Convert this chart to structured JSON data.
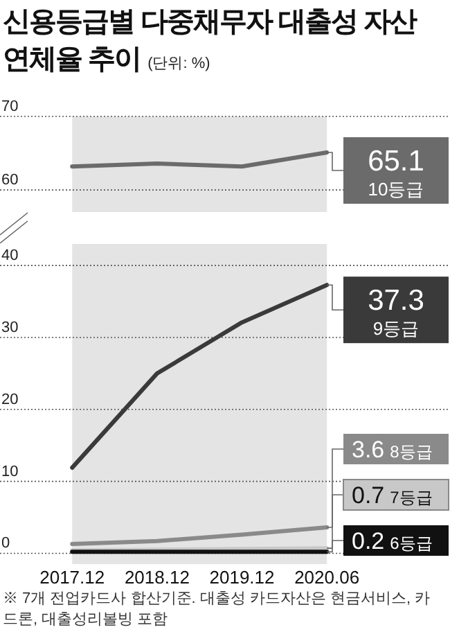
{
  "chart_data": [
    {
      "type": "line",
      "title": "신용등급별 다중채무자 대출성 자산 연체율 추이",
      "subtitle": "(단위: %)",
      "categories": [
        "2017.12",
        "2018.12",
        "2019.12",
        "2020.06"
      ],
      "series": [
        {
          "name": "10등급",
          "color": "#6b6b6b",
          "values": [
            63.2,
            63.6,
            63.2,
            65.1
          ],
          "value_labels": [
            null,
            null,
            null,
            "65.1"
          ]
        }
      ],
      "ylim": [
        57,
        70
      ],
      "yticks": [
        60,
        70
      ],
      "grid": "y",
      "tick_labels": "y",
      "bands": [
        {
          "axis": "x",
          "from": "2017.12",
          "to": "2020.06",
          "color": "#e4e4e4"
        }
      ]
    },
    {
      "type": "line",
      "categories": [
        "2017.12",
        "2018.12",
        "2019.12",
        "2020.06"
      ],
      "series": [
        {
          "name": "9등급",
          "color": "#3a3a3a",
          "values": [
            11.9,
            25.0,
            32.1,
            37.3
          ],
          "value_labels": [
            null,
            null,
            null,
            "37.3"
          ]
        },
        {
          "name": "8등급",
          "color": "#8a8a8a",
          "values": [
            1.3,
            1.7,
            2.6,
            3.6
          ],
          "value_labels": [
            null,
            null,
            null,
            "3.6"
          ]
        },
        {
          "name": "7등급",
          "color": "#c8c8c8",
          "values": [
            0.4,
            0.5,
            0.6,
            0.7
          ],
          "value_labels": [
            null,
            null,
            null,
            "0.7"
          ]
        },
        {
          "name": "6등급",
          "color": "#111111",
          "values": [
            0.2,
            0.2,
            0.2,
            0.2
          ],
          "value_labels": [
            null,
            null,
            null,
            "0.2"
          ]
        }
      ],
      "ylim": [
        -1.5,
        43
      ],
      "yticks": [
        0,
        10,
        20,
        30,
        40
      ],
      "grid": "y",
      "bands": [
        {
          "axis": "x",
          "from": "2017.12",
          "to": "2020.06",
          "color": "#e4e4e4"
        }
      ],
      "annotations": [
        "※ 7개 전업카드사 합산기준. 대출성 카드자산은 현금서비스, 카드론, 대출성리볼빙 포함"
      ]
    }
  ]
}
